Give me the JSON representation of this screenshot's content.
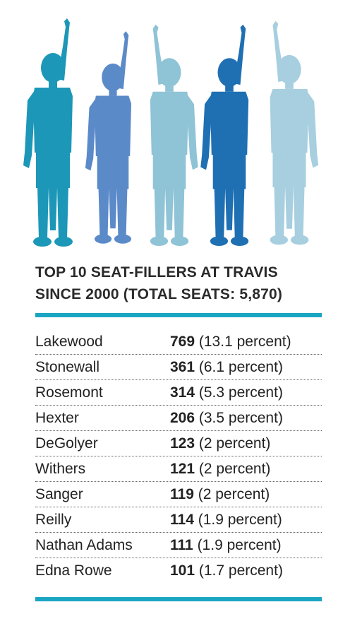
{
  "title_lines": [
    "TOP 10 SEAT-FILLERS AT TRAVIS",
    "SINCE 2000 (TOTAL SEATS: 5,870)"
  ],
  "colors": {
    "accent": "#1aa5c2",
    "figures": [
      "#1c97b8",
      "#5b8ac9",
      "#8fc3d6",
      "#1f6fb3",
      "#a7cfdf"
    ]
  },
  "icons": [
    "child-raising-hand-icon",
    "child-raising-hand-icon",
    "child-raising-hand-icon",
    "child-raising-hand-icon",
    "child-raising-hand-icon"
  ],
  "chart_data": {
    "type": "table",
    "rows": [
      {
        "school": "Lakewood",
        "seats": "769",
        "percent": "(13.1 percent)"
      },
      {
        "school": "Stonewall",
        "seats": "361",
        "percent": "(6.1 percent)"
      },
      {
        "school": "Rosemont",
        "seats": "314",
        "percent": "(5.3 percent)"
      },
      {
        "school": "Hexter",
        "seats": "206",
        "percent": "(3.5 percent)"
      },
      {
        "school": "DeGolyer",
        "seats": "123",
        "percent": "(2 percent)"
      },
      {
        "school": "Withers",
        "seats": "121",
        "percent": "(2 percent)"
      },
      {
        "school": "Sanger",
        "seats": "119",
        "percent": "(2 percent)"
      },
      {
        "school": "Reilly",
        "seats": "114",
        "percent": "(1.9 percent)"
      },
      {
        "school": "Nathan Adams",
        "seats": "111",
        "percent": "(1.9 percent)"
      },
      {
        "school": "Edna Rowe",
        "seats": "101",
        "percent": "(1.7 percent)"
      }
    ]
  }
}
